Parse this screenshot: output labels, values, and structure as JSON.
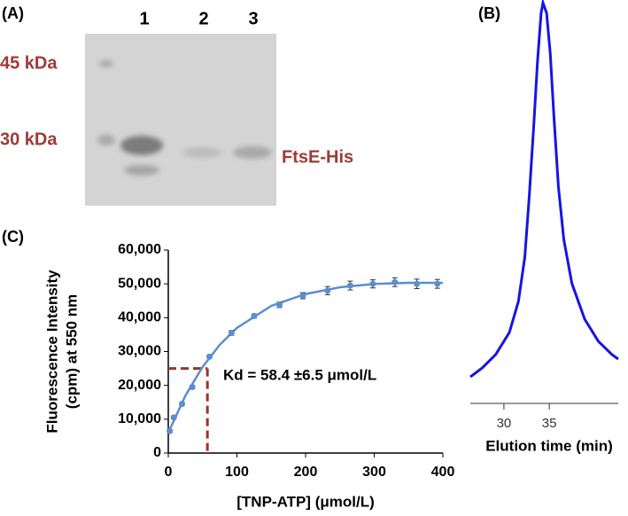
{
  "gel": {
    "label": "(A)",
    "lanes": [
      "1",
      "2",
      "3"
    ],
    "markers": [
      "45 kDa",
      "30 kDa"
    ],
    "band_label": "FtsE-His"
  },
  "chart_data": [
    {
      "type": "line",
      "label": "(B)",
      "xlabel": "Elution time (min)",
      "x": [
        26.3,
        27.6,
        29.1,
        30.6,
        31.6,
        32.3,
        32.8,
        33.3,
        33.7,
        34.1,
        34.3,
        34.7,
        35.1,
        35.5,
        36.0,
        36.6,
        37.5,
        38.9,
        40.4,
        41.9,
        42.6
      ],
      "series": [
        {
          "color": "#1515e6",
          "values": [
            3.4,
            5.7,
            9.2,
            14.9,
            22.9,
            34.3,
            50.3,
            68.6,
            84.7,
            97.3,
            100,
            97.3,
            87.0,
            70.9,
            52.6,
            38.9,
            27.5,
            18.3,
            12.6,
            9.2,
            8.0
          ]
        }
      ],
      "xlim": [
        26.3,
        42.6
      ],
      "ylim": [
        0,
        100
      ],
      "xticks": [
        30,
        35
      ]
    },
    {
      "type": "scatter",
      "label": "(C)",
      "xlabel": "[TNP-ATP] (μmol/L)",
      "ylabel": [
        "Fluorescence Intensity",
        "(cpm) at 550 nm"
      ],
      "annotation": "Kd = 58.4 ±6.5 μmol/L",
      "series": [
        {
          "style": "line",
          "color": "#5b8ed0",
          "x": [
            0,
            25,
            50,
            75,
            100,
            150,
            200,
            250,
            300,
            350,
            400
          ],
          "values": [
            6000,
            17000,
            25500,
            32000,
            37000,
            43500,
            47000,
            49000,
            50000,
            50300,
            50300
          ]
        },
        {
          "style": "points",
          "color": "#5b8ed0",
          "x": [
            2,
            8,
            20,
            35,
            60,
            92,
            125,
            162,
            196,
            232,
            265,
            298,
            330,
            362,
            392
          ],
          "values": [
            6500,
            10500,
            14500,
            19500,
            28500,
            35500,
            40500,
            43800,
            46500,
            48000,
            49500,
            50000,
            50500,
            50000,
            50000
          ],
          "errors": [
            500,
            500,
            500,
            500,
            500,
            700,
            600,
            800,
            900,
            1200,
            1300,
            1200,
            1300,
            1400,
            1300
          ]
        }
      ],
      "reference": {
        "x": 57,
        "y": 25000,
        "color": "#a0302a"
      },
      "xlim": [
        0,
        400
      ],
      "ylim": [
        0,
        60000
      ],
      "xticks": [
        0,
        100,
        200,
        300,
        400
      ],
      "yticks": [
        0,
        {
          "value": 10000,
          "label": "10,000"
        },
        {
          "value": 20000,
          "label": "20,000"
        },
        {
          "value": 30000,
          "label": "30,000"
        },
        {
          "value": 40000,
          "label": "40,000"
        },
        {
          "value": 50000,
          "label": "50,000"
        },
        {
          "value": 60000,
          "label": "60,000"
        }
      ]
    }
  ]
}
